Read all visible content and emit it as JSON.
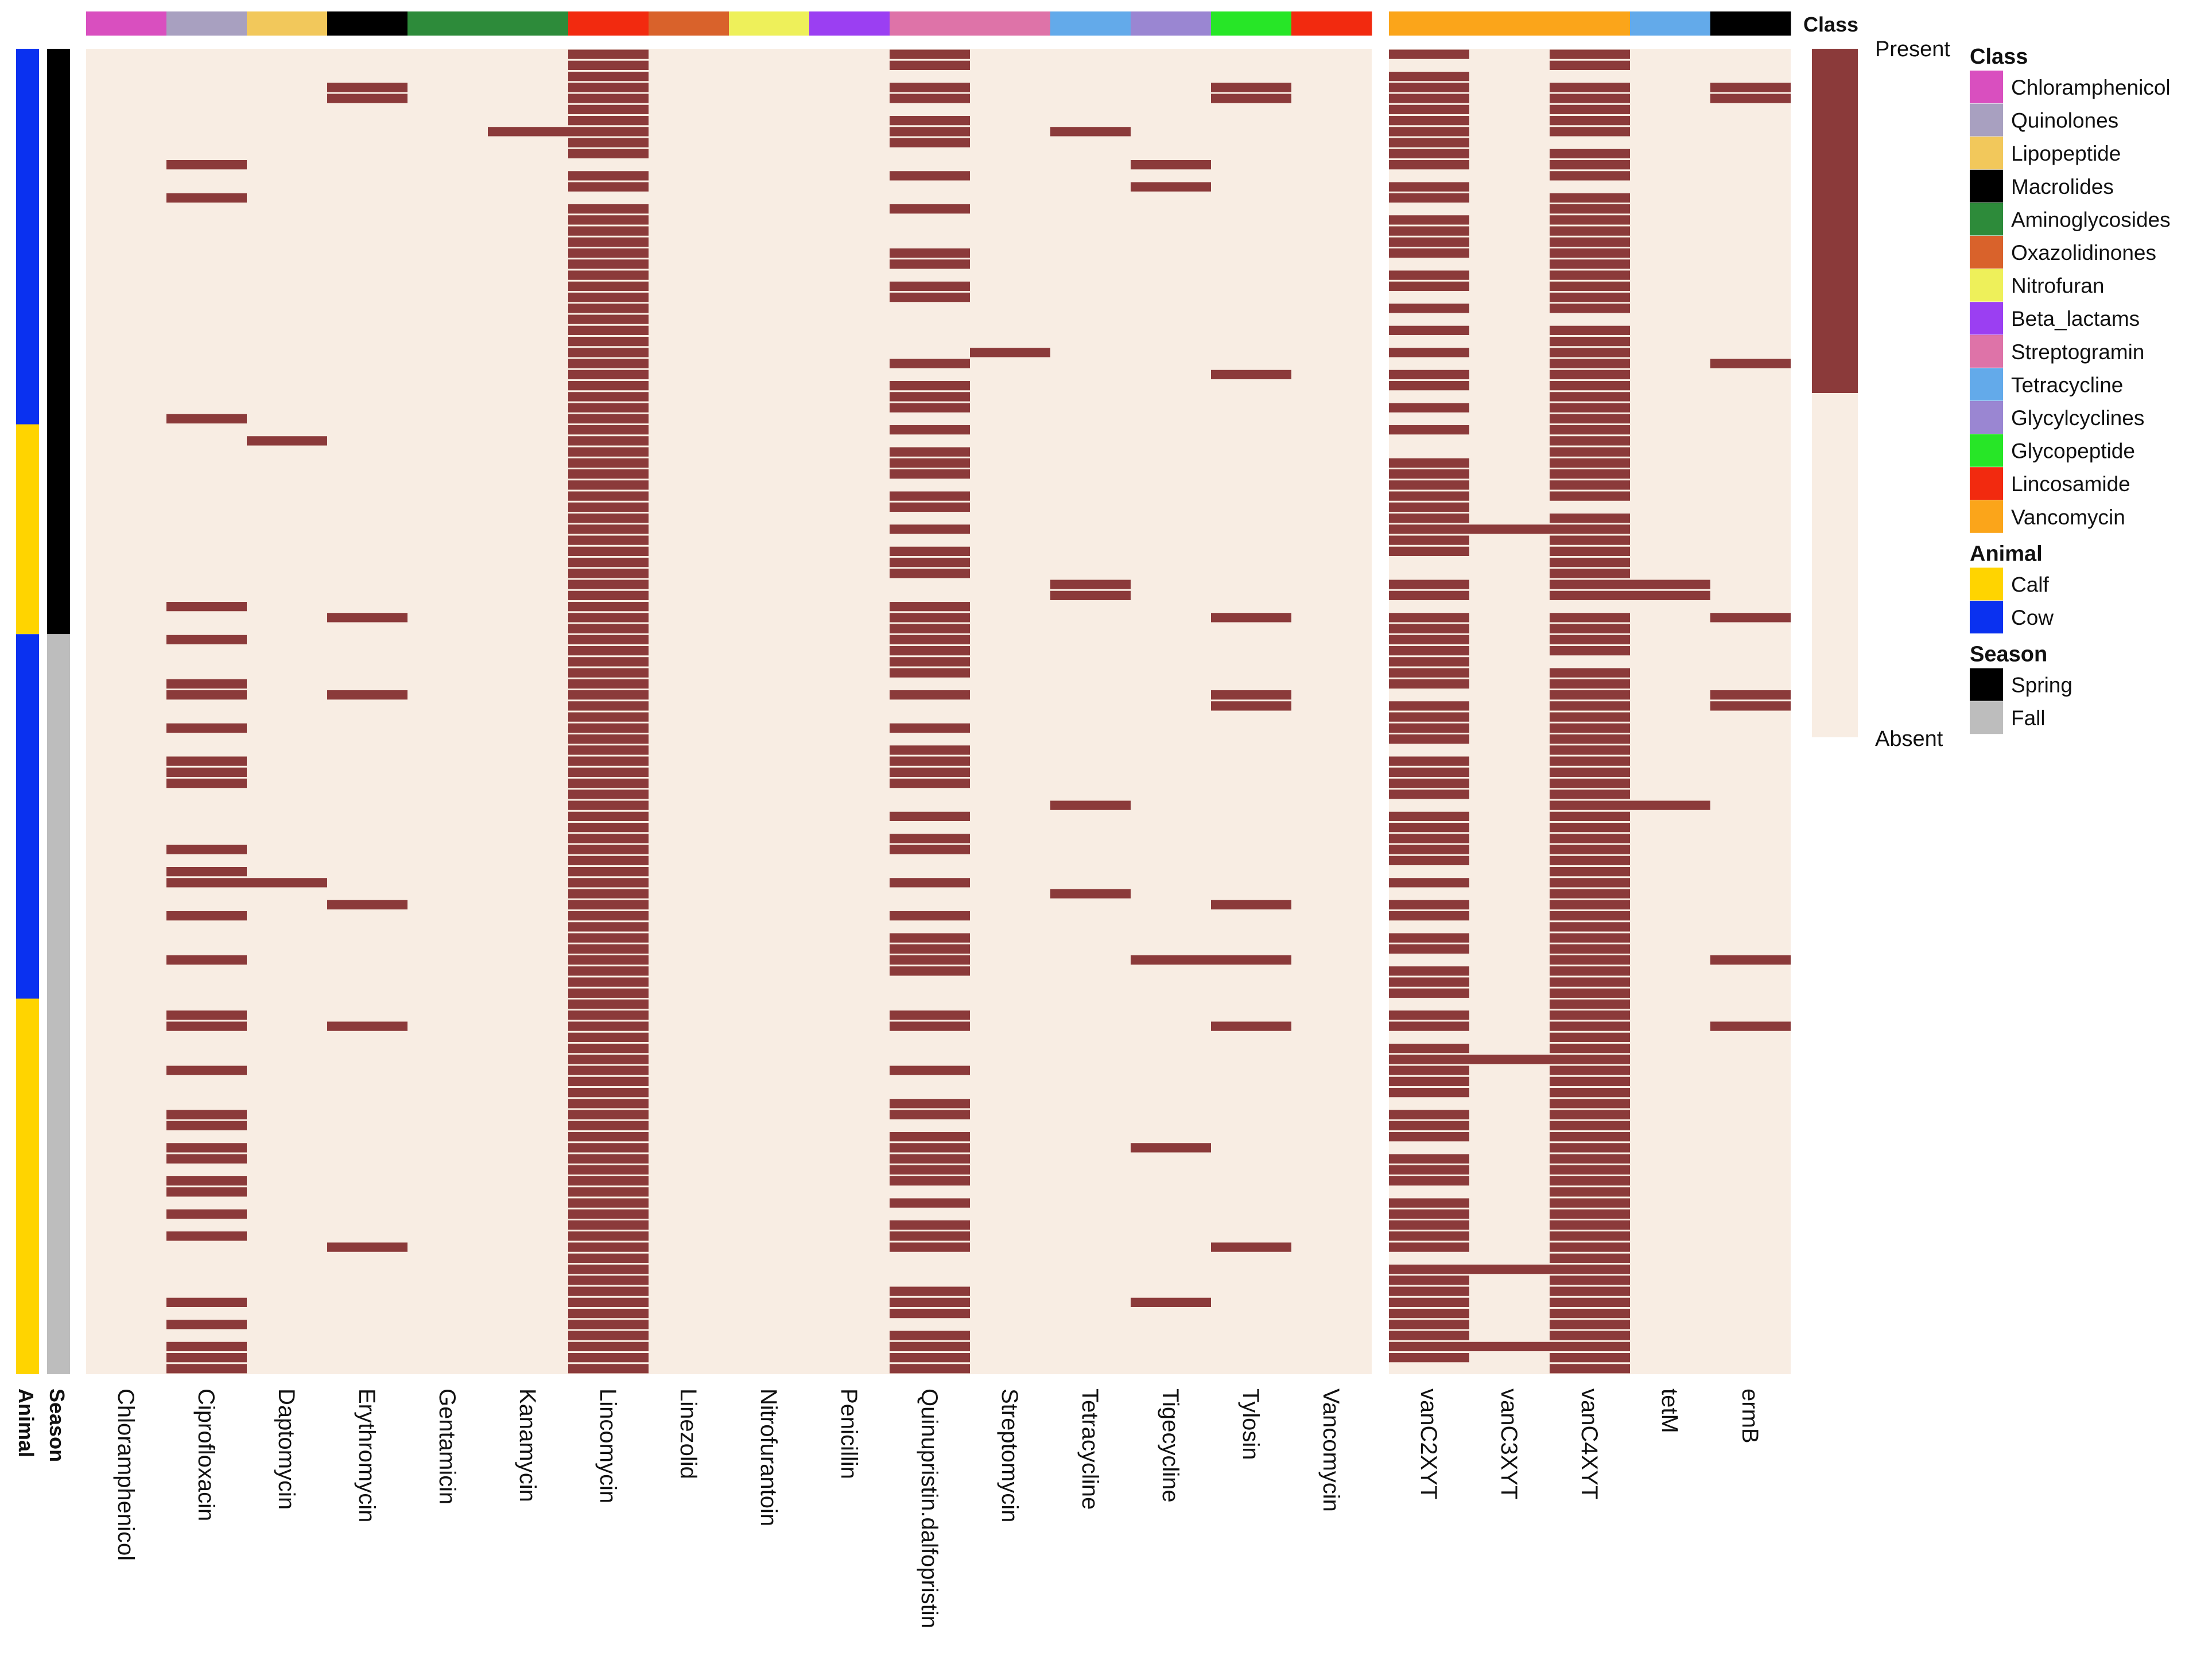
{
  "chart_data": {
    "type": "heatmap",
    "title": "",
    "n_samples": 120,
    "matrix_value_legend": {
      "present_label": "Present",
      "absent_label": "Absent",
      "present_color": "#8b3a3a",
      "absent_color": "#f8ede3"
    },
    "row_annotations": {
      "animal": {
        "label": "Animal",
        "segments": [
          {
            "value": "Cow",
            "start": 0,
            "end": 34
          },
          {
            "value": "Calf",
            "start": 34,
            "end": 53
          },
          {
            "value": "Cow",
            "start": 53,
            "end": 86
          },
          {
            "value": "Calf",
            "start": 86,
            "end": 120
          }
        ]
      },
      "season": {
        "label": "Season",
        "segments": [
          {
            "value": "Spring",
            "start": 0,
            "end": 53
          },
          {
            "value": "Fall",
            "start": 53,
            "end": 120
          }
        ]
      }
    },
    "panels": [
      {
        "id": "phenotype",
        "columns": [
          {
            "name": "Chloramphenicol",
            "class": "Chloramphenicol",
            "present_rows": []
          },
          {
            "name": "Ciprofloxacin",
            "class": "Quinolones",
            "present_rows": [
              10,
              13,
              33,
              50,
              53,
              57,
              58,
              61,
              64,
              65,
              66,
              72,
              74,
              75,
              78,
              82,
              87,
              88,
              92,
              96,
              97,
              99,
              100,
              102,
              103,
              105,
              107,
              113,
              115,
              117,
              118,
              119
            ]
          },
          {
            "name": "Daptomycin",
            "class": "Lipopeptide",
            "present_rows": [
              35,
              75
            ]
          },
          {
            "name": "Erythromycin",
            "class": "Macrolides",
            "present_rows": [
              3,
              4,
              51,
              58,
              77,
              88,
              108
            ]
          },
          {
            "name": "Gentamicin",
            "class": "Aminoglycosides",
            "present_rows": []
          },
          {
            "name": "Kanamycin",
            "class": "Aminoglycosides",
            "present_rows": [
              7
            ]
          },
          {
            "name": "Lincomycin",
            "class": "Lincosamide",
            "present_rows": [
              0,
              1,
              2,
              3,
              4,
              5,
              6,
              7,
              8,
              9,
              11,
              12,
              14,
              15,
              16,
              17,
              18,
              19,
              20,
              21,
              22,
              23,
              24,
              25,
              26,
              27,
              28,
              29,
              30,
              31,
              32,
              33,
              34,
              35,
              36,
              37,
              38,
              39,
              40,
              41,
              42,
              43,
              44,
              45,
              46,
              47,
              48,
              49,
              50,
              51,
              52,
              53,
              54,
              55,
              56,
              57,
              58,
              59,
              60,
              61,
              62,
              63,
              64,
              65,
              66,
              67,
              68,
              69,
              70,
              71,
              72,
              73,
              74,
              75,
              76,
              77,
              78,
              79,
              80,
              81,
              82,
              83,
              84,
              85,
              86,
              87,
              88,
              89,
              90,
              91,
              92,
              93,
              94,
              95,
              96,
              97,
              98,
              99,
              100,
              101,
              102,
              103,
              104,
              105,
              106,
              107,
              108,
              109,
              110,
              111,
              112,
              113,
              114,
              115,
              116,
              117,
              118,
              119
            ]
          },
          {
            "name": "Linezolid",
            "class": "Oxazolidinones",
            "present_rows": []
          },
          {
            "name": "Nitrofurantoin",
            "class": "Nitrofuran",
            "present_rows": []
          },
          {
            "name": "Penicillin",
            "class": "Beta_lactams",
            "present_rows": []
          },
          {
            "name": "Quinupristin.dalfopristin",
            "class": "Streptogramin",
            "present_rows": [
              0,
              1,
              3,
              4,
              6,
              7,
              8,
              11,
              14,
              18,
              19,
              21,
              22,
              28,
              30,
              31,
              32,
              34,
              36,
              37,
              38,
              40,
              41,
              43,
              45,
              46,
              47,
              50,
              51,
              52,
              53,
              54,
              55,
              56,
              58,
              61,
              63,
              64,
              65,
              66,
              69,
              71,
              72,
              75,
              78,
              80,
              81,
              82,
              83,
              87,
              88,
              92,
              95,
              96,
              98,
              99,
              100,
              101,
              102,
              104,
              106,
              107,
              108,
              112,
              113,
              114,
              116,
              117,
              118,
              119
            ]
          },
          {
            "name": "Streptomycin",
            "class": "Streptogramin",
            "present_rows": [
              27
            ]
          },
          {
            "name": "Tetracycline",
            "class": "Tetracycline",
            "present_rows": [
              7,
              48,
              49,
              68,
              76
            ]
          },
          {
            "name": "Tigecycline",
            "class": "Glycylcyclines",
            "present_rows": [
              10,
              12,
              82,
              99,
              113
            ]
          },
          {
            "name": "Tylosin",
            "class": "Glycopeptide",
            "present_rows": [
              3,
              4,
              29,
              51,
              58,
              59,
              77,
              82,
              88,
              108
            ]
          },
          {
            "name": "Vancomycin",
            "class": "Lincosamide",
            "present_rows": []
          }
        ]
      },
      {
        "id": "genotype",
        "columns": [
          {
            "name": "vanC2XYT",
            "class": "Vancomycin",
            "present_rows": [
              0,
              2,
              3,
              4,
              5,
              6,
              7,
              8,
              9,
              10,
              12,
              13,
              15,
              16,
              17,
              18,
              20,
              21,
              23,
              25,
              27,
              29,
              30,
              32,
              34,
              37,
              38,
              39,
              40,
              41,
              42,
              43,
              44,
              45,
              48,
              49,
              51,
              52,
              53,
              54,
              55,
              56,
              57,
              59,
              60,
              61,
              62,
              64,
              65,
              66,
              67,
              69,
              70,
              71,
              72,
              73,
              75,
              77,
              78,
              80,
              81,
              83,
              84,
              85,
              87,
              88,
              90,
              91,
              92,
              93,
              94,
              96,
              97,
              98,
              100,
              101,
              102,
              104,
              105,
              106,
              107,
              108,
              110,
              111,
              112,
              113,
              114,
              115,
              116,
              117,
              118
            ]
          },
          {
            "name": "vanC3XYT",
            "class": "Vancomycin",
            "present_rows": [
              43,
              91,
              110,
              117
            ]
          },
          {
            "name": "vanC4XYT",
            "class": "Vancomycin",
            "present_rows": [
              0,
              1,
              3,
              4,
              5,
              6,
              7,
              9,
              10,
              11,
              13,
              14,
              15,
              16,
              17,
              18,
              19,
              20,
              21,
              22,
              23,
              25,
              26,
              27,
              28,
              29,
              30,
              31,
              32,
              33,
              34,
              35,
              36,
              37,
              38,
              39,
              40,
              42,
              43,
              44,
              45,
              46,
              47,
              48,
              49,
              51,
              52,
              53,
              54,
              56,
              57,
              58,
              59,
              60,
              61,
              62,
              63,
              64,
              65,
              66,
              67,
              68,
              69,
              70,
              71,
              72,
              73,
              74,
              75,
              76,
              77,
              78,
              79,
              80,
              81,
              82,
              83,
              84,
              85,
              86,
              87,
              88,
              89,
              90,
              91,
              92,
              93,
              94,
              95,
              96,
              97,
              98,
              99,
              100,
              101,
              102,
              103,
              104,
              105,
              106,
              107,
              108,
              109,
              110,
              111,
              112,
              113,
              114,
              115,
              116,
              117,
              118,
              119
            ]
          },
          {
            "name": "tetM",
            "class": "Tetracycline",
            "present_rows": [
              48,
              49,
              68
            ]
          },
          {
            "name": "ermB",
            "class": "Macrolides",
            "present_rows": [
              3,
              4,
              28,
              51,
              58,
              59,
              82,
              88
            ]
          }
        ]
      }
    ],
    "legends": {
      "class": {
        "title": "Class",
        "items": [
          {
            "label": "Chloramphenicol",
            "color": "#d94fbf"
          },
          {
            "label": "Quinolones",
            "color": "#a8a0c0"
          },
          {
            "label": "Lipopeptide",
            "color": "#f2c85b"
          },
          {
            "label": "Macrolides",
            "color": "#000000"
          },
          {
            "label": "Aminoglycosides",
            "color": "#2d8b3a"
          },
          {
            "label": "Oxazolidinones",
            "color": "#d9622b"
          },
          {
            "label": "Nitrofuran",
            "color": "#eef05a"
          },
          {
            "label": "Beta_lactams",
            "color": "#9b3ff2"
          },
          {
            "label": "Streptogramin",
            "color": "#de73a8"
          },
          {
            "label": "Tetracycline",
            "color": "#63aaea"
          },
          {
            "label": "Glycylcyclines",
            "color": "#9a86d2"
          },
          {
            "label": "Glycopeptide",
            "color": "#27e627"
          },
          {
            "label": "Lincosamide",
            "color": "#f22a0f"
          },
          {
            "label": "Vancomycin",
            "color": "#fba51a"
          }
        ]
      },
      "animal": {
        "title": "Animal",
        "items": [
          {
            "label": "Calf",
            "color": "#ffd400"
          },
          {
            "label": "Cow",
            "color": "#0a31f0"
          }
        ]
      },
      "season": {
        "title": "Season",
        "items": [
          {
            "label": "Spring",
            "color": "#000000"
          },
          {
            "label": "Fall",
            "color": "#bdbdbd"
          }
        ]
      }
    }
  }
}
